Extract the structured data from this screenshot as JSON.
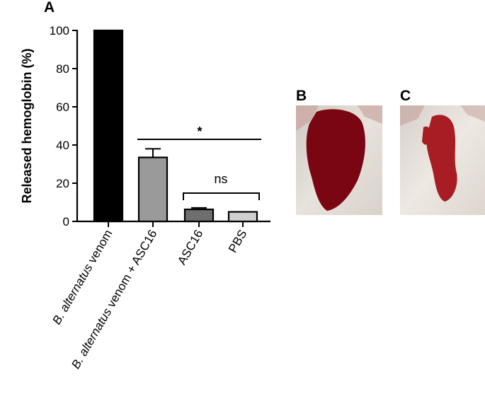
{
  "panels": {
    "a_label": "A",
    "b_label": "B",
    "c_label": "C"
  },
  "chart_data": {
    "type": "bar",
    "ylabel": "Released hemoglobin (%)",
    "ylim": [
      0,
      100
    ],
    "yticks": [
      "0",
      "20",
      "40",
      "60",
      "80",
      "100"
    ],
    "categories": [
      {
        "italic": "B. alternatus",
        "rest": " venom"
      },
      {
        "italic": "B. alternatus",
        "rest": " venom + ASC16"
      },
      {
        "italic": "",
        "rest": "ASC16"
      },
      {
        "italic": "",
        "rest": "PBS"
      }
    ],
    "values": [
      100,
      33.5,
      6.3,
      5
    ],
    "errors": [
      0,
      4.5,
      0.8,
      0
    ],
    "bar_colors": [
      "#000000",
      "#9a9a9a",
      "#6e6e6e",
      "#d0d0d0"
    ],
    "significance": [
      {
        "label": "*",
        "style": "line"
      },
      {
        "label": "ns",
        "style": "bracket"
      }
    ],
    "grid": false
  },
  "photos": {
    "b_color": "#7a0612",
    "c_color": "#a81c24"
  }
}
